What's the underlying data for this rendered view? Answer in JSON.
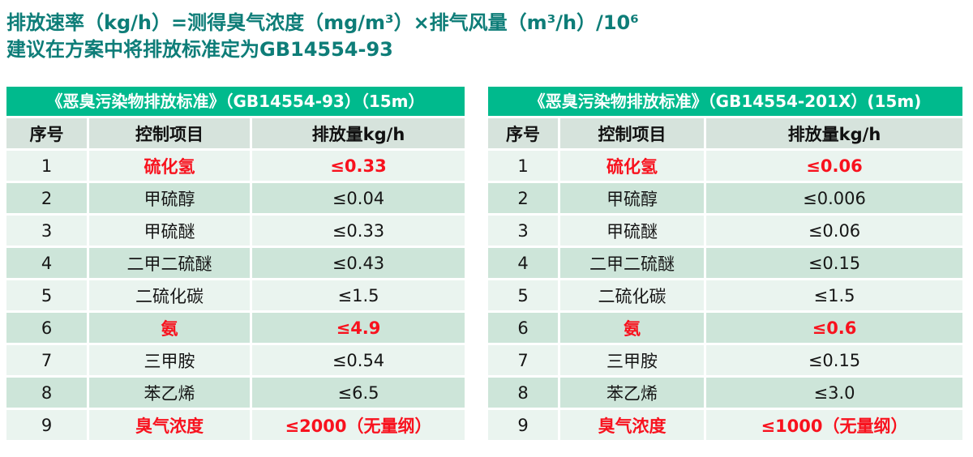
{
  "page": {
    "background": "#ffffff",
    "accent_green": "#00BA8D",
    "teal_text_color": "#0E7D78",
    "highlight_red": "#F8121E",
    "header_row_bg": "#D6E3DC",
    "odd_row_bg": "#EAF4EF",
    "even_row_bg": "#CDE5D9"
  },
  "header": {
    "line1": "排放速率（kg/h）=测得臭气浓度（mg/m³）×排气风量（m³/h）/10⁶",
    "line2": "建议在方案中将排放标准定为GB14554-93"
  },
  "tables": [
    {
      "title": "《恶臭污染物排放标准》（GB14554-93）（15m）",
      "columns": [
        "序号",
        "控制项目",
        "排放量kg/h"
      ],
      "rows": [
        {
          "no": "1",
          "item": "硫化氢",
          "value": "≤0.33",
          "highlight": true
        },
        {
          "no": "2",
          "item": "甲硫醇",
          "value": "≤0.04",
          "highlight": false
        },
        {
          "no": "3",
          "item": "甲硫醚",
          "value": "≤0.33",
          "highlight": false
        },
        {
          "no": "4",
          "item": "二甲二硫醚",
          "value": "≤0.43",
          "highlight": false
        },
        {
          "no": "5",
          "item": "二硫化碳",
          "value": "≤1.5",
          "highlight": false
        },
        {
          "no": "6",
          "item": "氨",
          "value": "≤4.9",
          "highlight": true
        },
        {
          "no": "7",
          "item": "三甲胺",
          "value": "≤0.54",
          "highlight": false
        },
        {
          "no": "8",
          "item": "苯乙烯",
          "value": "≤6.5",
          "highlight": false
        },
        {
          "no": "9",
          "item": "臭气浓度",
          "value": "≤2000（无量纲）",
          "highlight": true
        }
      ]
    },
    {
      "title": "《恶臭污染物排放标准》（GB14554-201X）(15m)",
      "columns": [
        "序号",
        "控制项目",
        "排放量kg/h"
      ],
      "rows": [
        {
          "no": "1",
          "item": "硫化氢",
          "value": "≤0.06",
          "highlight": true
        },
        {
          "no": "2",
          "item": "甲硫醇",
          "value": "≤0.006",
          "highlight": false
        },
        {
          "no": "3",
          "item": "甲硫醚",
          "value": "≤0.06",
          "highlight": false
        },
        {
          "no": "4",
          "item": "二甲二硫醚",
          "value": "≤0.15",
          "highlight": false
        },
        {
          "no": "5",
          "item": "二硫化碳",
          "value": "≤1.5",
          "highlight": false
        },
        {
          "no": "6",
          "item": "氨",
          "value": "≤0.6",
          "highlight": true
        },
        {
          "no": "7",
          "item": "三甲胺",
          "value": "≤0.15",
          "highlight": false
        },
        {
          "no": "8",
          "item": "苯乙烯",
          "value": "≤3.0",
          "highlight": false
        },
        {
          "no": "9",
          "item": "臭气浓度",
          "value": "≤1000（无量纲）",
          "highlight": true
        }
      ]
    }
  ]
}
